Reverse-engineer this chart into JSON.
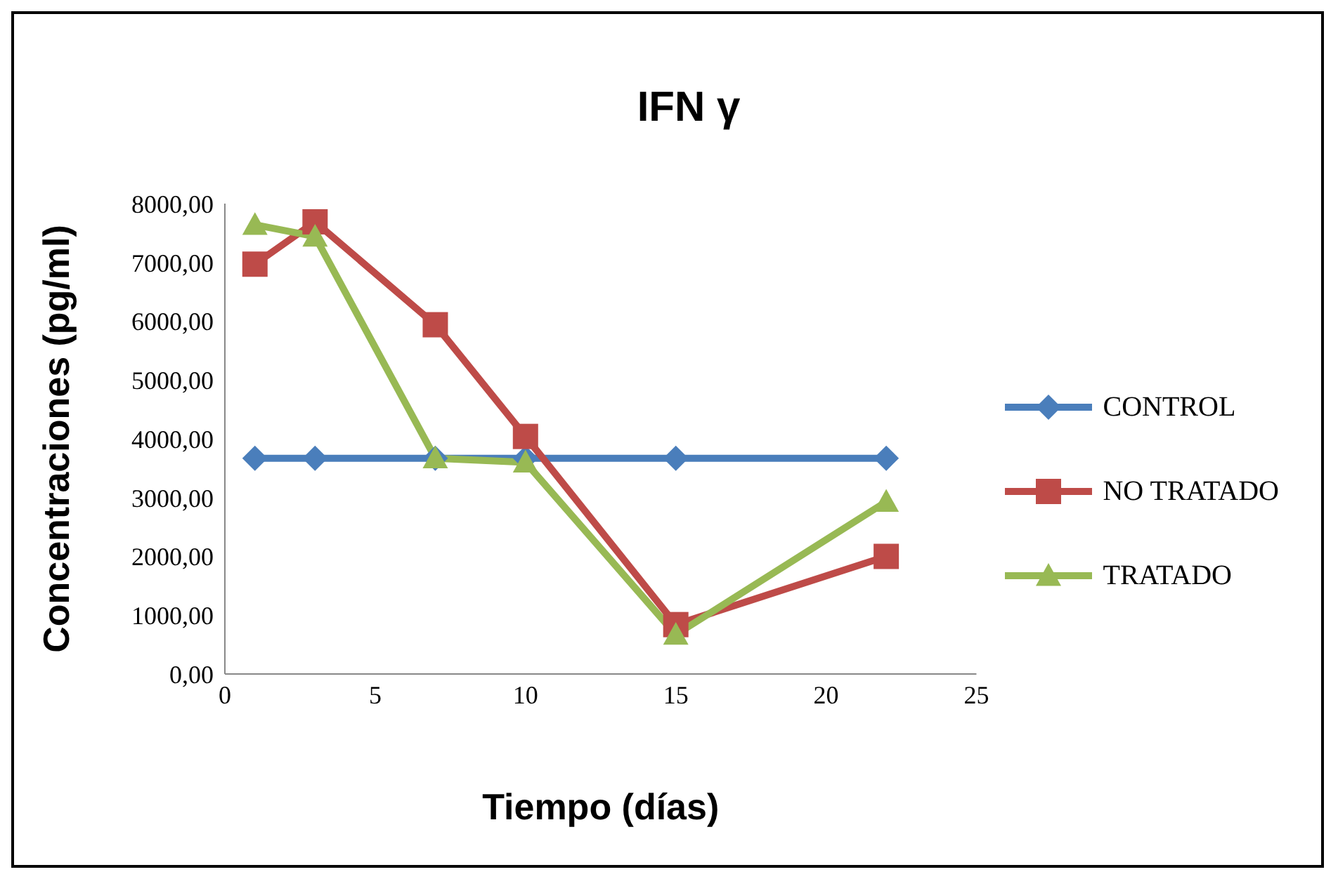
{
  "chart_data": {
    "type": "line",
    "title": "IFN γ",
    "xlabel": "Tiempo (días)",
    "ylabel": "Concentraciones (pg/ml)",
    "x": [
      1,
      3,
      7,
      10,
      15,
      22
    ],
    "xlim": [
      0,
      25
    ],
    "xticks": [
      0,
      5,
      10,
      15,
      20,
      25
    ],
    "ylim": [
      0,
      8000
    ],
    "yticks": [
      {
        "value": 0,
        "label": "0,00"
      },
      {
        "value": 1000,
        "label": "1000,00"
      },
      {
        "value": 2000,
        "label": "2000,00"
      },
      {
        "value": 3000,
        "label": "3000,00"
      },
      {
        "value": 4000,
        "label": "4000,00"
      },
      {
        "value": 5000,
        "label": "5000,00"
      },
      {
        "value": 6000,
        "label": "6000,00"
      },
      {
        "value": 7000,
        "label": "7000,00"
      },
      {
        "value": 8000,
        "label": "8000,00"
      }
    ],
    "legend": "right",
    "line_style": "solid",
    "series": [
      {
        "name": "CONTROL",
        "color": "#4a7ebb",
        "marker": "diamond",
        "values": [
          3670,
          3670,
          3670,
          3670,
          3670,
          3670
        ]
      },
      {
        "name": "NO TRATADO",
        "color": "#be4b48",
        "marker": "square",
        "values": [
          6970,
          7690,
          5940,
          4040,
          840,
          2000
        ]
      },
      {
        "name": "TRATADO",
        "color": "#98b954",
        "marker": "triangle",
        "values": [
          7640,
          7440,
          3670,
          3600,
          670,
          2930
        ]
      }
    ]
  }
}
